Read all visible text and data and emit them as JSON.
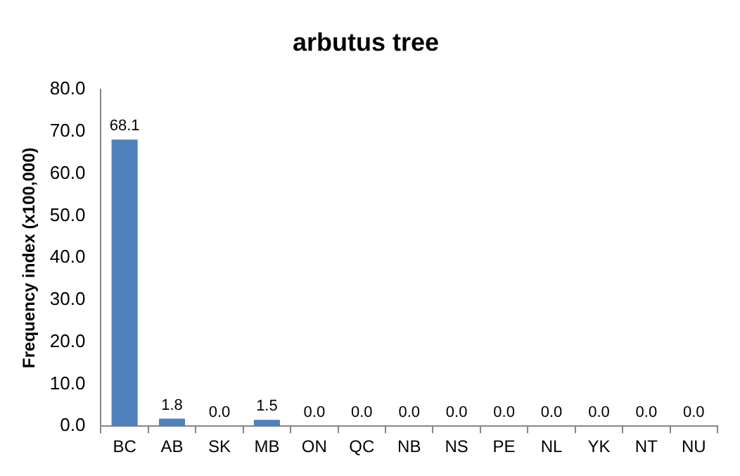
{
  "chart_data": {
    "type": "bar",
    "title": "arbutus tree",
    "ylabel": "Frequency index (x100,000)",
    "categories": [
      "BC",
      "AB",
      "SK",
      "MB",
      "ON",
      "QC",
      "NB",
      "NS",
      "PE",
      "NL",
      "YK",
      "NT",
      "NU"
    ],
    "values": [
      68.1,
      1.8,
      0,
      1.5,
      0,
      0,
      0,
      0,
      0,
      0,
      0,
      0,
      0
    ],
    "value_labels": [
      "68.1",
      "1.8",
      "0.0",
      "1.5",
      "0.0",
      "0.0",
      "0.0",
      "0.0",
      "0.0",
      "0.0",
      "0.0",
      "0.0",
      "0.0"
    ],
    "color": "#4f81bd",
    "ylim": [
      0,
      80
    ],
    "yticks": [
      {
        "value": 0,
        "label": "0.0"
      },
      {
        "value": 10,
        "label": "10.0"
      },
      {
        "value": 20,
        "label": "20.0"
      },
      {
        "value": 30,
        "label": "30.0"
      },
      {
        "value": 40,
        "label": "40.0"
      },
      {
        "value": 50,
        "label": "50.0"
      },
      {
        "value": 60,
        "label": "60.0"
      },
      {
        "value": 70,
        "label": "70.0"
      },
      {
        "value": 80,
        "label": "80.0"
      }
    ],
    "grid": false,
    "legend": false
  }
}
